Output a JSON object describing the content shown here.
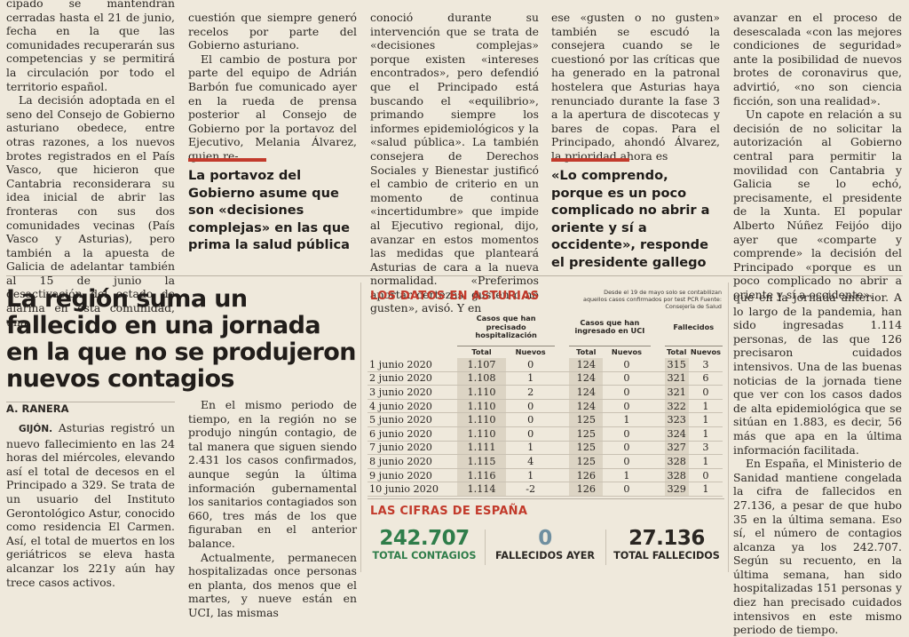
{
  "top_columns": {
    "col1": [
      "cipado se mantendrán cerradas hasta el 21 de junio, fecha en la que las comunidades recuperarán sus competencias y se permitirá la circulación por todo el territorio español.",
      "La decisión adoptada en el seno del Consejo de Gobierno asturiano obedece, entre otras razones, a los nuevos brotes registrados en el País Vasco, que hicieron que Cantabria reconsiderara su idea inicial de abrir las fronteras con sus dos comunidades vecinas (País Vasco y Asturias), pero también a la apuesta de Galicia de adelantar también al 15 de junio la desactivación del estado de alarma en esta comunidad, una"
    ],
    "col2": [
      "cuestión que siempre generó recelos por parte del Gobierno asturiano.",
      "El cambio de postura por parte del equipo de Adrián Barbón fue comunicado ayer en la rueda de prensa posterior al Consejo de Gobierno por la portavoz del Ejecutivo, Melania Álvarez, quien re-"
    ],
    "col2_pullquote": "La portavoz del Gobierno asume que son «decisiones complejas» en las que prima la salud pública",
    "col3": [
      "conoció durante su intervención que se trata de «decisiones complejas» porque existen «intereses encontrados», pero defendió que el Principado está buscando el «equilibrio», primando siempre los informes epidemiológicos y la «salud pública». La también consejera de Derechos Sociales y Bienestar justificó el cambio de criterio en un momento de continua «incertidumbre» que impide al Ejecutivo regional, dijo, avanzar en estos momentos las medidas que planteará Asturias de cara a la nueva normalidad. «Preferimos aportar certezas, gusten o no gusten», avisó. Y en"
    ],
    "col4": [
      "ese «gusten o no gusten» también se escudó la consejera cuando se le cuestionó por las críticas que ha generado en la patronal hostelera que Asturias haya renunciado durante la fase 3 a la apertura de discotecas y bares de copas. Para el Principado, ahondó Álvarez, la prioridad ahora es"
    ],
    "col4_pullquote": "«Lo comprendo, porque es un poco complicado no abrir a oriente y sí a occidente», responde el presidente gallego",
    "col5": [
      "avanzar en el proceso de desescalada «con las mejores condiciones de seguridad» ante la posibilidad de nuevos brotes de coronavirus que, advirtió, «no son ciencia ficción, son una realidad».",
      "Un capote en relación a su decisión de no solicitar la autorización al Gobierno central para permitir la movilidad con Cantabria y Galicia se lo echó, precisamente, el presidente de la Xunta. El popular Alberto Núñez Feijóo dijo ayer que «comparte y comprende» la decisión del Principado «porque es un poco complicado no abrir a oriente y sí a occidente»."
    ]
  },
  "article": {
    "headline": "La región suma un fallecido en una jornada en la que no se produjeron nuevos contagios",
    "byline": "A. RANERA",
    "place": "GIJÓN.",
    "col1": " Asturias registró un nuevo fallecimiento en las 24 horas del miércoles, elevando así el total de decesos en el Principado a 329. Se trata de un usuario del Instituto Gerontológico Astur, conocido como residencia El Carmen. Así, el total de muertos en los geriátricos se eleva hasta alcanzar los 221y aún hay trece casos activos.",
    "col2": [
      "En el mismo periodo de tiempo, en la región no se produjo ningún contagio, de tal manera que siguen siendo 2.431 los casos confirmados, aunque según la última información gubernamental los sanitarios contagiados son 660, tres más de los que figuraban en el anterior balance.",
      "Actualmente, permanecen hospitalizadas once personas en planta, dos menos que el martes, y nueve están en UCI, las mismas"
    ],
    "col3": [
      "que en la jornada anterior. A lo largo de la pandemia, han sido ingresadas 1.114 personas, de las que 126 precisaron cuidados intensivos. Una de las buenas noticias de la jornada tiene que ver con los casos dados de alta epidemiológica que se sitúan en 1.883, es decir, 56 más que apa en la última información facilitada.",
      "En España, el Ministerio de Sanidad mantiene congelada la cifra de fallecidos en 27.136, a pesar de que hubo 35 en la última semana. Eso sí, el número de contagios alcanza ya los 242.707. Según su recuento, en la última semana, han sido hospitalizadas 151 personas y diez han precisado cuidados intensivos en este mismo periodo de tiempo."
    ]
  },
  "asturias": {
    "title": "LOS DATOS EN ASTURIAS",
    "note": "Desde el 19 de mayo solo se contabilizan aquellos casos confirmados por test PCR Fuente: Consejería de Salud",
    "groups": [
      "Casos que han precisado hospitalización",
      "Casos que han ingresado en UCI",
      "Fallecidos"
    ],
    "subheads": [
      "Total",
      "Nuevos",
      "Total",
      "Nuevos",
      "Total",
      "Nuevos"
    ],
    "rows": [
      [
        "1 junio 2020",
        "1.107",
        "0",
        "124",
        "0",
        "315",
        "3"
      ],
      [
        "2 junio 2020",
        "1.108",
        "1",
        "124",
        "0",
        "321",
        "6"
      ],
      [
        "3 junio 2020",
        "1.110",
        "2",
        "124",
        "0",
        "321",
        "0"
      ],
      [
        "4 junio 2020",
        "1.110",
        "0",
        "124",
        "0",
        "322",
        "1"
      ],
      [
        "5 junio 2020",
        "1.110",
        "0",
        "125",
        "1",
        "323",
        "1"
      ],
      [
        "6 junio 2020",
        "1.110",
        "0",
        "125",
        "0",
        "324",
        "1"
      ],
      [
        "7 junio 2020",
        "1.111",
        "1",
        "125",
        "0",
        "327",
        "3"
      ],
      [
        "8 junio 2020",
        "1.115",
        "4",
        "125",
        "0",
        "328",
        "1"
      ],
      [
        "9 junio 2020",
        "1.116",
        "1",
        "126",
        "1",
        "328",
        "0"
      ],
      [
        "10 junio 2020",
        "1.114",
        "-2",
        "126",
        "0",
        "329",
        "1"
      ]
    ]
  },
  "espana": {
    "title": "LAS CIFRAS DE ESPAÑA",
    "stats": [
      {
        "value": "242.707",
        "label": "TOTAL CONTAGIOS",
        "value_color": "#2f7d4a",
        "label_color": "#2f7d4a"
      },
      {
        "value": "0",
        "label": "FALLECIDOS AYER",
        "value_color": "#6f8fa0",
        "label_color": "#2a2622"
      },
      {
        "value": "27.136",
        "label": "TOTAL FALLECIDOS",
        "value_color": "#2a2622",
        "label_color": "#2a2622"
      }
    ]
  },
  "colors": {
    "accent": "#c23a2b",
    "paper": "#efe9dc",
    "table_shade": "#dcd4c4"
  }
}
